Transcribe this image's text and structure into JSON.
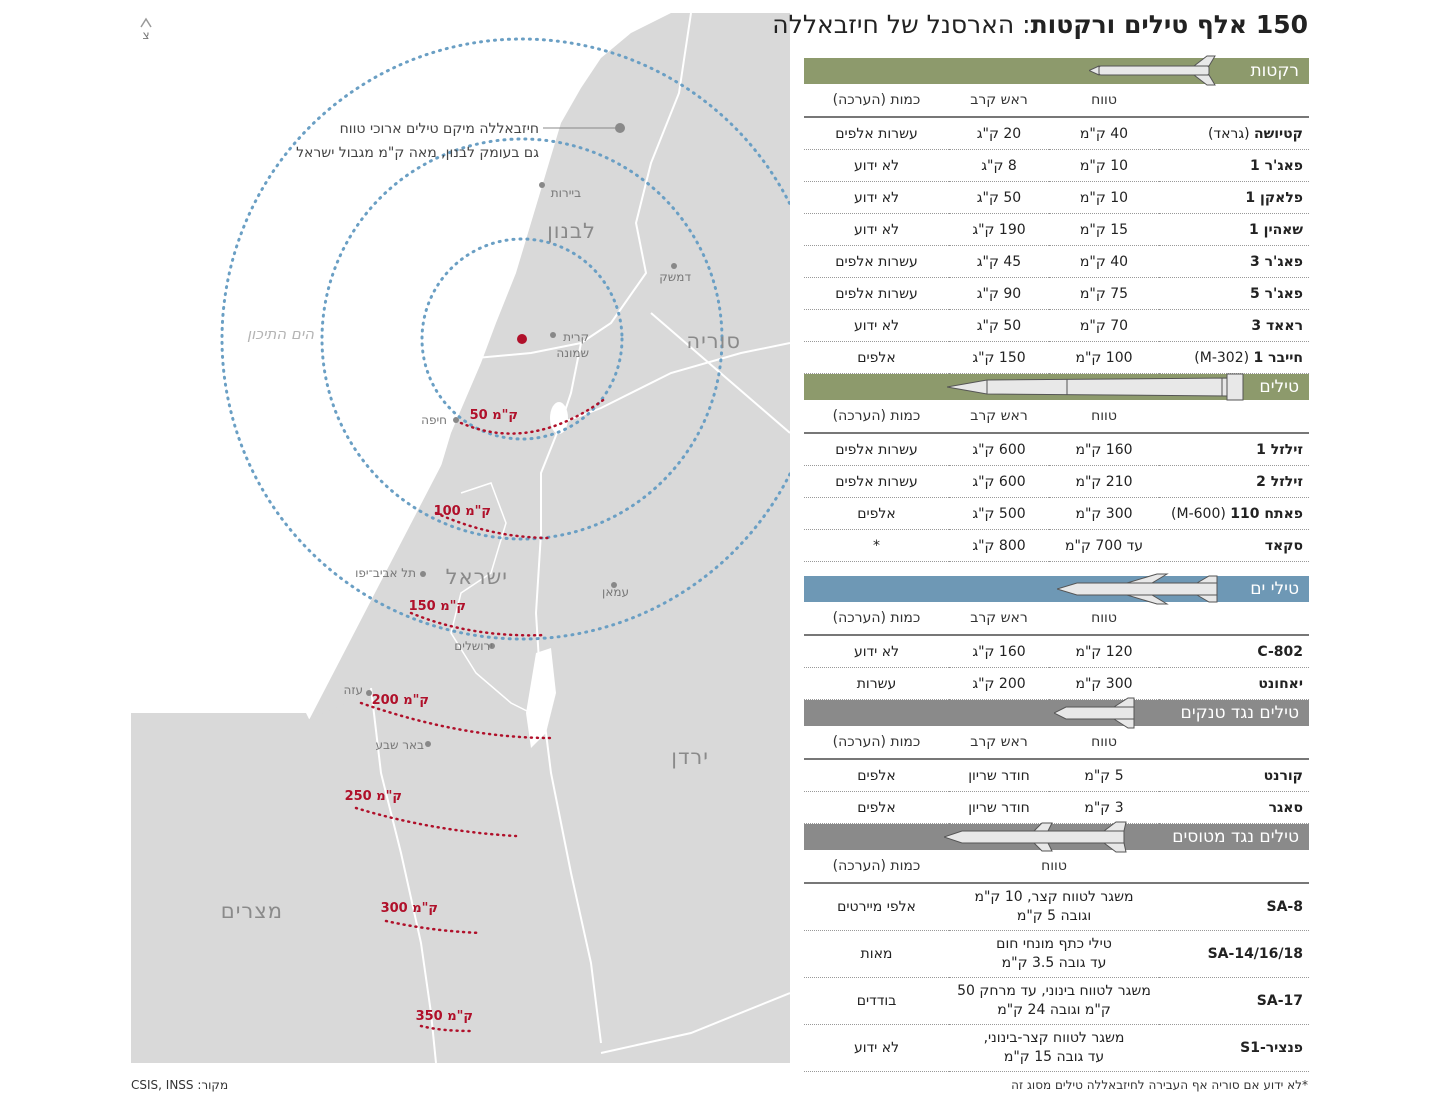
{
  "title": {
    "bold": "150 אלף טילים ורקטות",
    "rest": ": הארסנל של חיזבאללה"
  },
  "map": {
    "callout_line1": "חיזבאללה מיקם טילים ארוכי טווח",
    "callout_line2": "גם בעומק לבנון, מאה ק\"מ מגבול ישראל",
    "north_arrow": "צ",
    "sea": "הים התיכון",
    "countries": {
      "lebanon": "לבנון",
      "syria": "סוריה",
      "israel": "ישראל",
      "jordan": "ירדן",
      "egypt": "מצרים"
    },
    "cities": {
      "beirut": "ביירות",
      "damascus": "דמשק",
      "kiryat1": "קרית",
      "kiryat2": "שמונה",
      "haifa": "חיפה",
      "tel_aviv": "תל אביב־יפו",
      "jerusalem": "ירושלים",
      "amman": "עמאן",
      "gaza": "עזה",
      "beersheba": "באר שבע"
    },
    "ranges": [
      "50 ק\"מ",
      "100 ק\"מ",
      "150 ק\"מ",
      "200 ק\"מ",
      "250 ק\"מ",
      "300 ק\"מ",
      "350 ק\"מ"
    ],
    "colors": {
      "land": "#d9d9d9",
      "ring": "#6a9fc4",
      "range_line": "#b0102a",
      "launch_point": "#b0102a"
    }
  },
  "sections": {
    "rockets": {
      "title": "רקטות",
      "headers": {
        "range": "טווח",
        "warhead": "ראש קרב",
        "qty": "כמות (הערכה)"
      },
      "rows": [
        {
          "name": "קטיושה",
          "paren": " (גראד)",
          "range": "40 ק\"מ",
          "warhead": "20 ק\"ג",
          "qty": "עשרות אלפים"
        },
        {
          "name": "פאג'ר 1",
          "paren": "",
          "range": "10 ק\"מ",
          "warhead": "8 ק\"ג",
          "qty": "לא ידוע"
        },
        {
          "name": "פלאקן 1",
          "paren": "",
          "range": "10 ק\"מ",
          "warhead": "50 ק\"ג",
          "qty": "לא ידוע"
        },
        {
          "name": "שאהין 1",
          "paren": "",
          "range": "15 ק\"מ",
          "warhead": "190 ק\"ג",
          "qty": "לא ידוע"
        },
        {
          "name": "פאג'ר 3",
          "paren": "",
          "range": "40 ק\"מ",
          "warhead": "45 ק\"ג",
          "qty": "עשרות אלפים"
        },
        {
          "name": "פאג'ר 5",
          "paren": "",
          "range": "75 ק\"מ",
          "warhead": "90 ק\"ג",
          "qty": "עשרות אלפים"
        },
        {
          "name": "ראאד 3",
          "paren": "",
          "range": "70 ק\"מ",
          "warhead": "50 ק\"ג",
          "qty": "לא ידוע"
        },
        {
          "name": "חייבר 1",
          "paren": " (M-302)",
          "range": "100 ק\"מ",
          "warhead": "150 ק\"ג",
          "qty": "אלפים"
        }
      ]
    },
    "missiles": {
      "title": "טילים",
      "headers": {
        "range": "טווח",
        "warhead": "ראש קרב",
        "qty": "כמות (הערכה)"
      },
      "rows": [
        {
          "name": "זילזל 1",
          "paren": "",
          "range": "160 ק\"מ",
          "warhead": "600 ק\"ג",
          "qty": "עשרות אלפים"
        },
        {
          "name": "זילזל 2",
          "paren": "",
          "range": "210 ק\"מ",
          "warhead": "600 ק\"ג",
          "qty": "עשרות אלפים"
        },
        {
          "name": "פאתח 110",
          "paren": " (M-600)",
          "range": "300 ק\"מ",
          "warhead": "500 ק\"ג",
          "qty": "אלפים"
        },
        {
          "name": "סקאד",
          "paren": "",
          "range": "עד 700 ק\"מ",
          "warhead": "800 ק\"ג",
          "qty": "*"
        }
      ]
    },
    "sea_missiles": {
      "title": "טילי ים",
      "headers": {
        "range": "טווח",
        "warhead": "ראש קרב",
        "qty": "כמות (הערכה)"
      },
      "rows": [
        {
          "name": "C-802",
          "paren": "",
          "range": "120 ק\"מ",
          "warhead": "160 ק\"ג",
          "qty": "לא ידוע"
        },
        {
          "name": "יאחונט",
          "paren": "",
          "range": "300 ק\"מ",
          "warhead": "200 ק\"ג",
          "qty": "עשרות"
        }
      ]
    },
    "anti_tank": {
      "title": "טילים נגד טנקים",
      "headers": {
        "range": "טווח",
        "warhead": "ראש קרב",
        "qty": "כמות (הערכה)"
      },
      "rows": [
        {
          "name": "קורנט",
          "paren": "",
          "range": "5 ק\"מ",
          "warhead": "חודר שריון",
          "qty": "אלפים"
        },
        {
          "name": "סאגר",
          "paren": "",
          "range": "3 ק\"מ",
          "warhead": "חודר שריון",
          "qty": "אלפים"
        }
      ]
    },
    "anti_air": {
      "title": "טילים נגד מטוסים",
      "headers": {
        "range": "טווח",
        "qty": "כמות (הערכה)"
      },
      "rows": [
        {
          "name": "SA-8",
          "range_l1": "משגר לטווח קצר, 10 ק\"מ",
          "range_l2": "וגובה 5 ק\"מ",
          "qty": "אלפי מיירטים"
        },
        {
          "name": "SA-14/16/18",
          "range_l1": "טילי כתף מונחי חום",
          "range_l2": "עד גובה 3.5 ק\"מ",
          "qty": "מאות"
        },
        {
          "name": "SA-17",
          "range_l1": "משגר לטווח בינוני, עד מרחק 50",
          "range_l2": "ק\"מ וגובה 24 ק\"מ",
          "qty": "בודדים"
        },
        {
          "name": "פנציר-S1",
          "range_l1": "משגר לטווח קצר-בינוני,",
          "range_l2": "עד גובה 15 ק\"מ",
          "qty": "לא ידוע"
        }
      ]
    }
  },
  "footnote": "*לא ידוע אם סוריה אף העבירה לחיזבאללה טילים מסוג זה",
  "source": "מקור: CSIS, INSS",
  "colors": {
    "bar_green": "#8d9a6c",
    "bar_blue": "#6e98b5",
    "bar_gray": "#8a8a8a"
  }
}
